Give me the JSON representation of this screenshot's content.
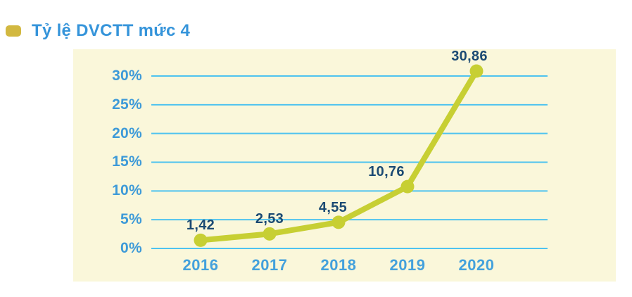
{
  "legend": {
    "title": "Tỷ lệ DVCTT mức 4",
    "swatch_color": "#d2b840",
    "title_color": "#3594da"
  },
  "chart_data": {
    "type": "line",
    "title": "Tỷ lệ DVCTT mức 4",
    "categories": [
      "2016",
      "2017",
      "2018",
      "2019",
      "2020"
    ],
    "series": [
      {
        "name": "Tỷ lệ DVCTT mức 4",
        "values": [
          1.42,
          2.53,
          4.55,
          10.76,
          30.86
        ]
      }
    ],
    "value_labels": [
      "1,42",
      "2,53",
      "4,55",
      "10,76",
      "30,86"
    ],
    "yticks": [
      {
        "value": 0,
        "label": "0%"
      },
      {
        "value": 5,
        "label": "5%"
      },
      {
        "value": 10,
        "label": "10%"
      },
      {
        "value": 15,
        "label": "15%"
      },
      {
        "value": 20,
        "label": "20%"
      },
      {
        "value": 25,
        "label": "25%"
      },
      {
        "value": 30,
        "label": "30%"
      }
    ],
    "ylim": [
      0,
      32
    ],
    "xlabel": "",
    "ylabel": "",
    "grid": true,
    "legend_position": "top-left",
    "colors": {
      "line": "#c7cf33",
      "marker": "#c7cf33",
      "gridline": "#4ec3ef",
      "axis_label": "#3d9ad8",
      "data_label": "#1b4a73",
      "panel_background": "#faf7da"
    },
    "layout_hints": {
      "label_dx": [
        0,
        0,
        -8,
        -30,
        -10
      ]
    }
  }
}
